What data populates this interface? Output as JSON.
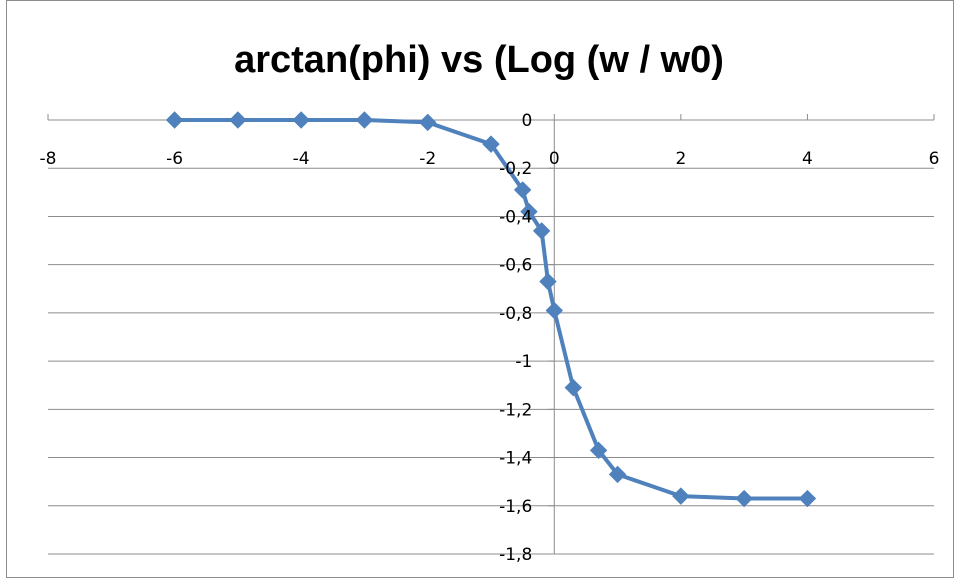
{
  "chart_data": {
    "type": "line",
    "title": "arctan(phi) vs (Log (w / w0)",
    "xlabel": "",
    "ylabel": "",
    "xlim": [
      -8,
      6
    ],
    "ylim": [
      -1.8,
      0
    ],
    "x_ticks": [
      -8,
      -6,
      -4,
      -2,
      0,
      2,
      4,
      6
    ],
    "x_tick_labels": [
      "-8",
      "-6",
      "-4",
      "-2",
      "0",
      "2",
      "4",
      "6"
    ],
    "y_ticks": [
      0,
      -0.2,
      -0.4,
      -0.6,
      -0.8,
      -1,
      -1.2,
      -1.4,
      -1.6,
      -1.8
    ],
    "y_tick_labels": [
      "0",
      "-0,2",
      "-0,4",
      "-0,6",
      "-0,8",
      "-1",
      "-1,2",
      "-1,4",
      "-1,6",
      "-1,8"
    ],
    "grid": true,
    "legend": "none",
    "series": [
      {
        "color": "#4F81BD",
        "marker": "diamond",
        "x": [
          -6,
          -5,
          -4,
          -3,
          -2,
          -1,
          -0.5,
          -0.4,
          -0.2,
          -0.1,
          0,
          0.3,
          0.7,
          1,
          2,
          3,
          4
        ],
        "y": [
          0,
          0,
          0,
          0,
          -0.01,
          -0.1,
          -0.29,
          -0.38,
          -0.46,
          -0.67,
          -0.79,
          -1.11,
          -1.37,
          -1.47,
          -1.56,
          -1.57,
          -1.57
        ]
      }
    ]
  }
}
